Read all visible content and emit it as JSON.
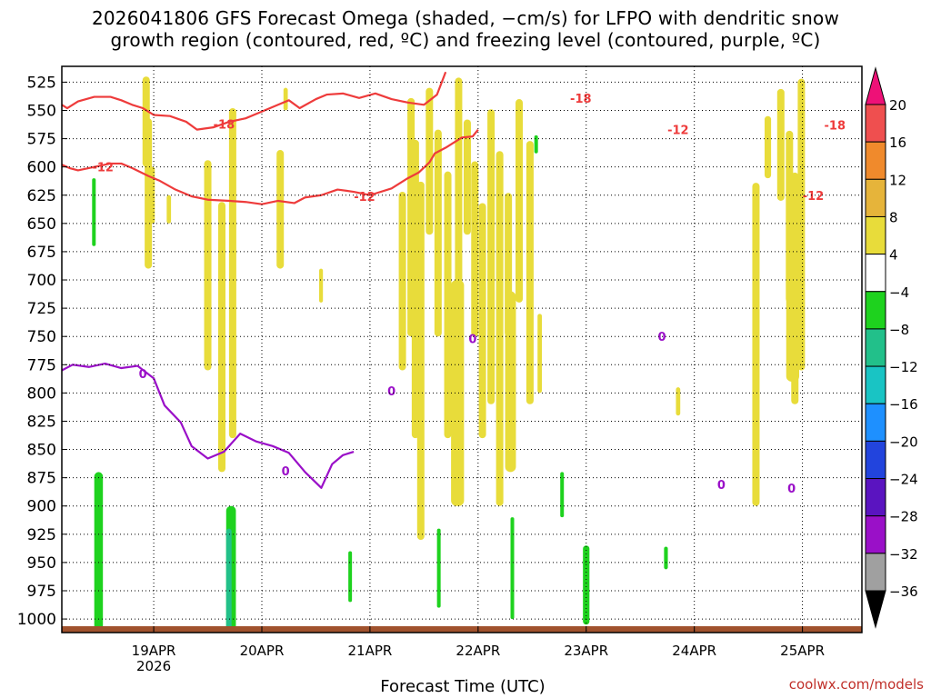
{
  "title_line1": "2026041806 GFS Forecast Omega (shaded, −cm/s) for LFPO with dendritic snow",
  "title_line2": "growth region (contoured, red, ºC) and freezing level (contoured, purple, ºC)",
  "credit": "coolwx.com/models",
  "chart_data": {
    "type": "heatmap",
    "title": "2026041806 GFS Forecast Omega (shaded, −cm/s) for LFPO with dendritic snow growth region (contoured, red, ºC) and freezing level (contoured, purple, ºC)",
    "xlabel": "Forecast Time (UTC)",
    "ylabel": "Pressure (hPa)",
    "xlim": [
      -0.85,
      6.55
    ],
    "ylim": [
      1012,
      511
    ],
    "x_ticks": [
      {
        "x": 0,
        "label": "19APR",
        "label2": "2026"
      },
      {
        "x": 1,
        "label": "20APR"
      },
      {
        "x": 2,
        "label": "21APR"
      },
      {
        "x": 3,
        "label": "22APR"
      },
      {
        "x": 4,
        "label": "23APR"
      },
      {
        "x": 5,
        "label": "24APR"
      },
      {
        "x": 6,
        "label": "25APR"
      }
    ],
    "y_ticks": [
      525,
      550,
      575,
      600,
      625,
      650,
      675,
      700,
      725,
      750,
      775,
      800,
      825,
      850,
      875,
      900,
      925,
      950,
      975,
      1000
    ],
    "colorbar": {
      "labels": [
        "20",
        "16",
        "12",
        "8",
        "4",
        "−4",
        "−8",
        "−12",
        "−16",
        "−20",
        "−24",
        "−28",
        "−32",
        "−36"
      ],
      "bins": [
        {
          "range": "16-20",
          "color": "#ef4f4f"
        },
        {
          "range": "12-16",
          "color": "#f08a2c"
        },
        {
          "range": "8-12",
          "color": "#e6b43a"
        },
        {
          "range": "4-8",
          "color": "#e8dc3a"
        },
        {
          "range": "-4-4",
          "color": "#ffffff"
        },
        {
          "range": "-8--4",
          "color": "#1ed21e"
        },
        {
          "range": "-12--8",
          "color": "#22c08a"
        },
        {
          "range": "-16--12",
          "color": "#19c4c4"
        },
        {
          "range": "-20--16",
          "color": "#1e90ff"
        },
        {
          "range": "-24--20",
          "color": "#2244dd"
        },
        {
          "range": "-28--24",
          "color": "#5a14c0"
        },
        {
          "range": "-32--28",
          "color": "#9a10c8"
        },
        {
          "range": "-36--32",
          "color": "#a0a0a0"
        }
      ],
      "top_arrow_color": "#ee1177",
      "bottom_arrow_color": "#000000"
    },
    "omega_patches": [
      {
        "x": -0.03,
        "p": 600,
        "dx": 0.04,
        "dp": 50,
        "color": "#e8dc3a"
      },
      {
        "x": 0.12,
        "p": 625,
        "dx": 0.04,
        "dp": 25,
        "color": "#e8dc3a"
      },
      {
        "x": 0.72,
        "p": 640,
        "dx": 0.035,
        "dp": 100,
        "color": "#e8dc3a"
      },
      {
        "x": 1.2,
        "p": 530,
        "dx": 0.04,
        "dp": 20,
        "color": "#e8dc3a"
      },
      {
        "x": 1.53,
        "p": 690,
        "dx": 0.035,
        "dp": 30,
        "color": "#e8dc3a"
      },
      {
        "x": 2.75,
        "p": 700,
        "dx": 0.12,
        "dp": 200,
        "color": "#e8dc3a"
      },
      {
        "x": 3.25,
        "p": 710,
        "dx": 0.1,
        "dp": 160,
        "color": "#e8dc3a"
      },
      {
        "x": 3.55,
        "p": 730,
        "dx": 0.04,
        "dp": 70,
        "color": "#e8dc3a"
      },
      {
        "x": 4.83,
        "p": 795,
        "dx": 0.04,
        "dp": 25,
        "color": "#e8dc3a"
      },
      {
        "x": 5.65,
        "p": 555,
        "dx": 0.06,
        "dp": 55,
        "color": "#e8dc3a"
      },
      {
        "x": 5.85,
        "p": 640,
        "dx": 0.12,
        "dp": 150,
        "color": "#e8dc3a"
      },
      {
        "x": 5.55,
        "p": 722,
        "dx": 0.03,
        "dp": 6,
        "color": "#e8dc3a"
      },
      {
        "x": 6.55,
        "p": 900,
        "dx": 0.04,
        "dp": 70,
        "color": "#e8dc3a"
      },
      {
        "x": -0.55,
        "p": 870,
        "dx": 0.08,
        "dp": 160,
        "color": "#1ed21e"
      },
      {
        "x": 0.67,
        "p": 900,
        "dx": 0.09,
        "dp": 160,
        "color": "#1ed21e"
      },
      {
        "x": 0.67,
        "p": 920,
        "dx": 0.05,
        "dp": 95,
        "color": "#22c08a"
      },
      {
        "x": 1.8,
        "p": 940,
        "dx": 0.025,
        "dp": 45,
        "color": "#1ed21e"
      },
      {
        "x": 2.62,
        "p": 920,
        "dx": 0.025,
        "dp": 70,
        "color": "#1ed21e"
      },
      {
        "x": 3.3,
        "p": 910,
        "dx": 0.03,
        "dp": 90,
        "color": "#1ed21e"
      },
      {
        "x": 3.76,
        "p": 870,
        "dx": 0.02,
        "dp": 40,
        "color": "#1ed21e"
      },
      {
        "x": 3.97,
        "p": 935,
        "dx": 0.06,
        "dp": 70,
        "color": "#1ed21e"
      },
      {
        "x": 4.72,
        "p": 936,
        "dx": 0.035,
        "dp": 20,
        "color": "#1ed21e"
      },
      {
        "x": 3.52,
        "p": 572,
        "dx": 0.012,
        "dp": 16,
        "color": "#1ed21e"
      },
      {
        "x": -0.57,
        "p": 610,
        "dx": 0.02,
        "dp": 60,
        "color": "#1ed21e"
      }
    ],
    "yellow_streaks_x": [
      -0.07,
      -0.05,
      0.5,
      0.63,
      0.73,
      1.17,
      2.3,
      2.38,
      2.42,
      2.47,
      2.55,
      2.63,
      2.72,
      2.82,
      2.9,
      2.97,
      3.04,
      3.12,
      3.2,
      3.28,
      3.38,
      3.48,
      5.57,
      5.8,
      5.88,
      5.93,
      5.99
    ],
    "red_contour_-18": {
      "x": [
        -0.85,
        -0.8,
        -0.7,
        -0.55,
        -0.4,
        -0.3,
        -0.2,
        -0.1,
        0.0,
        0.15,
        0.3,
        0.4,
        0.55,
        0.7,
        0.85,
        1.0,
        1.15,
        1.25,
        1.35,
        1.5,
        1.6,
        1.75,
        1.9,
        2.05,
        2.2,
        2.35,
        2.5,
        2.62,
        2.7
      ],
      "p": [
        545,
        548,
        542,
        538,
        538,
        541,
        545,
        548,
        554,
        555,
        560,
        567,
        565,
        560,
        557,
        551,
        545,
        541,
        548,
        540,
        536,
        535,
        539,
        535,
        540,
        543,
        545,
        536,
        516
      ],
      "labels": [
        {
          "x": 0.65,
          "p": 562,
          "text": "-18"
        },
        {
          "x": 3.95,
          "p": 539,
          "text": "-18"
        },
        {
          "x": 6.3,
          "p": 563,
          "text": "-18"
        }
      ]
    },
    "red_contour_-12": {
      "x": [
        -0.85,
        -0.78,
        -0.7,
        -0.55,
        -0.4,
        -0.3,
        -0.2,
        -0.05,
        0.05,
        0.2,
        0.35,
        0.5,
        0.7,
        0.85,
        1.0,
        1.15,
        1.3,
        1.4,
        1.55,
        1.7,
        1.85,
        2.0,
        2.2,
        2.35,
        2.45,
        2.55,
        2.6,
        2.7,
        2.85,
        2.95,
        3.0
      ],
      "p": [
        598,
        601,
        603,
        600,
        597,
        597,
        601,
        608,
        612,
        620,
        626,
        629,
        630,
        631,
        633,
        630,
        632,
        627,
        625,
        620,
        622,
        625,
        619,
        610,
        605,
        596,
        588,
        583,
        574,
        573,
        567
      ],
      "labels": [
        {
          "x": -0.47,
          "p": 600,
          "text": "-12"
        },
        {
          "x": 1.95,
          "p": 626,
          "text": "-12"
        },
        {
          "x": 4.85,
          "p": 567,
          "text": "-12"
        },
        {
          "x": 6.1,
          "p": 625,
          "text": "-12"
        }
      ]
    },
    "purple_contour_0": {
      "x": [
        -0.85,
        -0.75,
        -0.6,
        -0.45,
        -0.3,
        -0.15,
        0.0,
        0.1,
        0.25,
        0.35,
        0.5,
        0.65,
        0.8,
        0.95,
        1.1,
        1.25,
        1.4,
        1.55,
        1.65,
        1.75,
        1.85
      ],
      "p": [
        780,
        775,
        777,
        774,
        778,
        776,
        787,
        811,
        826,
        847,
        858,
        852,
        836,
        843,
        847,
        853,
        870,
        884,
        863,
        855,
        852
      ],
      "labels": [
        {
          "x": -0.1,
          "p": 783,
          "text": "0"
        },
        {
          "x": 1.22,
          "p": 869,
          "text": "0"
        },
        {
          "x": 2.2,
          "p": 798,
          "text": "0"
        },
        {
          "x": 2.95,
          "p": 752,
          "text": "0"
        },
        {
          "x": 4.7,
          "p": 750,
          "text": "0"
        },
        {
          "x": 5.25,
          "p": 881,
          "text": "0"
        },
        {
          "x": 5.9,
          "p": 884,
          "text": "0"
        }
      ]
    },
    "ground": {
      "p_top": 1008,
      "color": "#a0522d"
    }
  }
}
